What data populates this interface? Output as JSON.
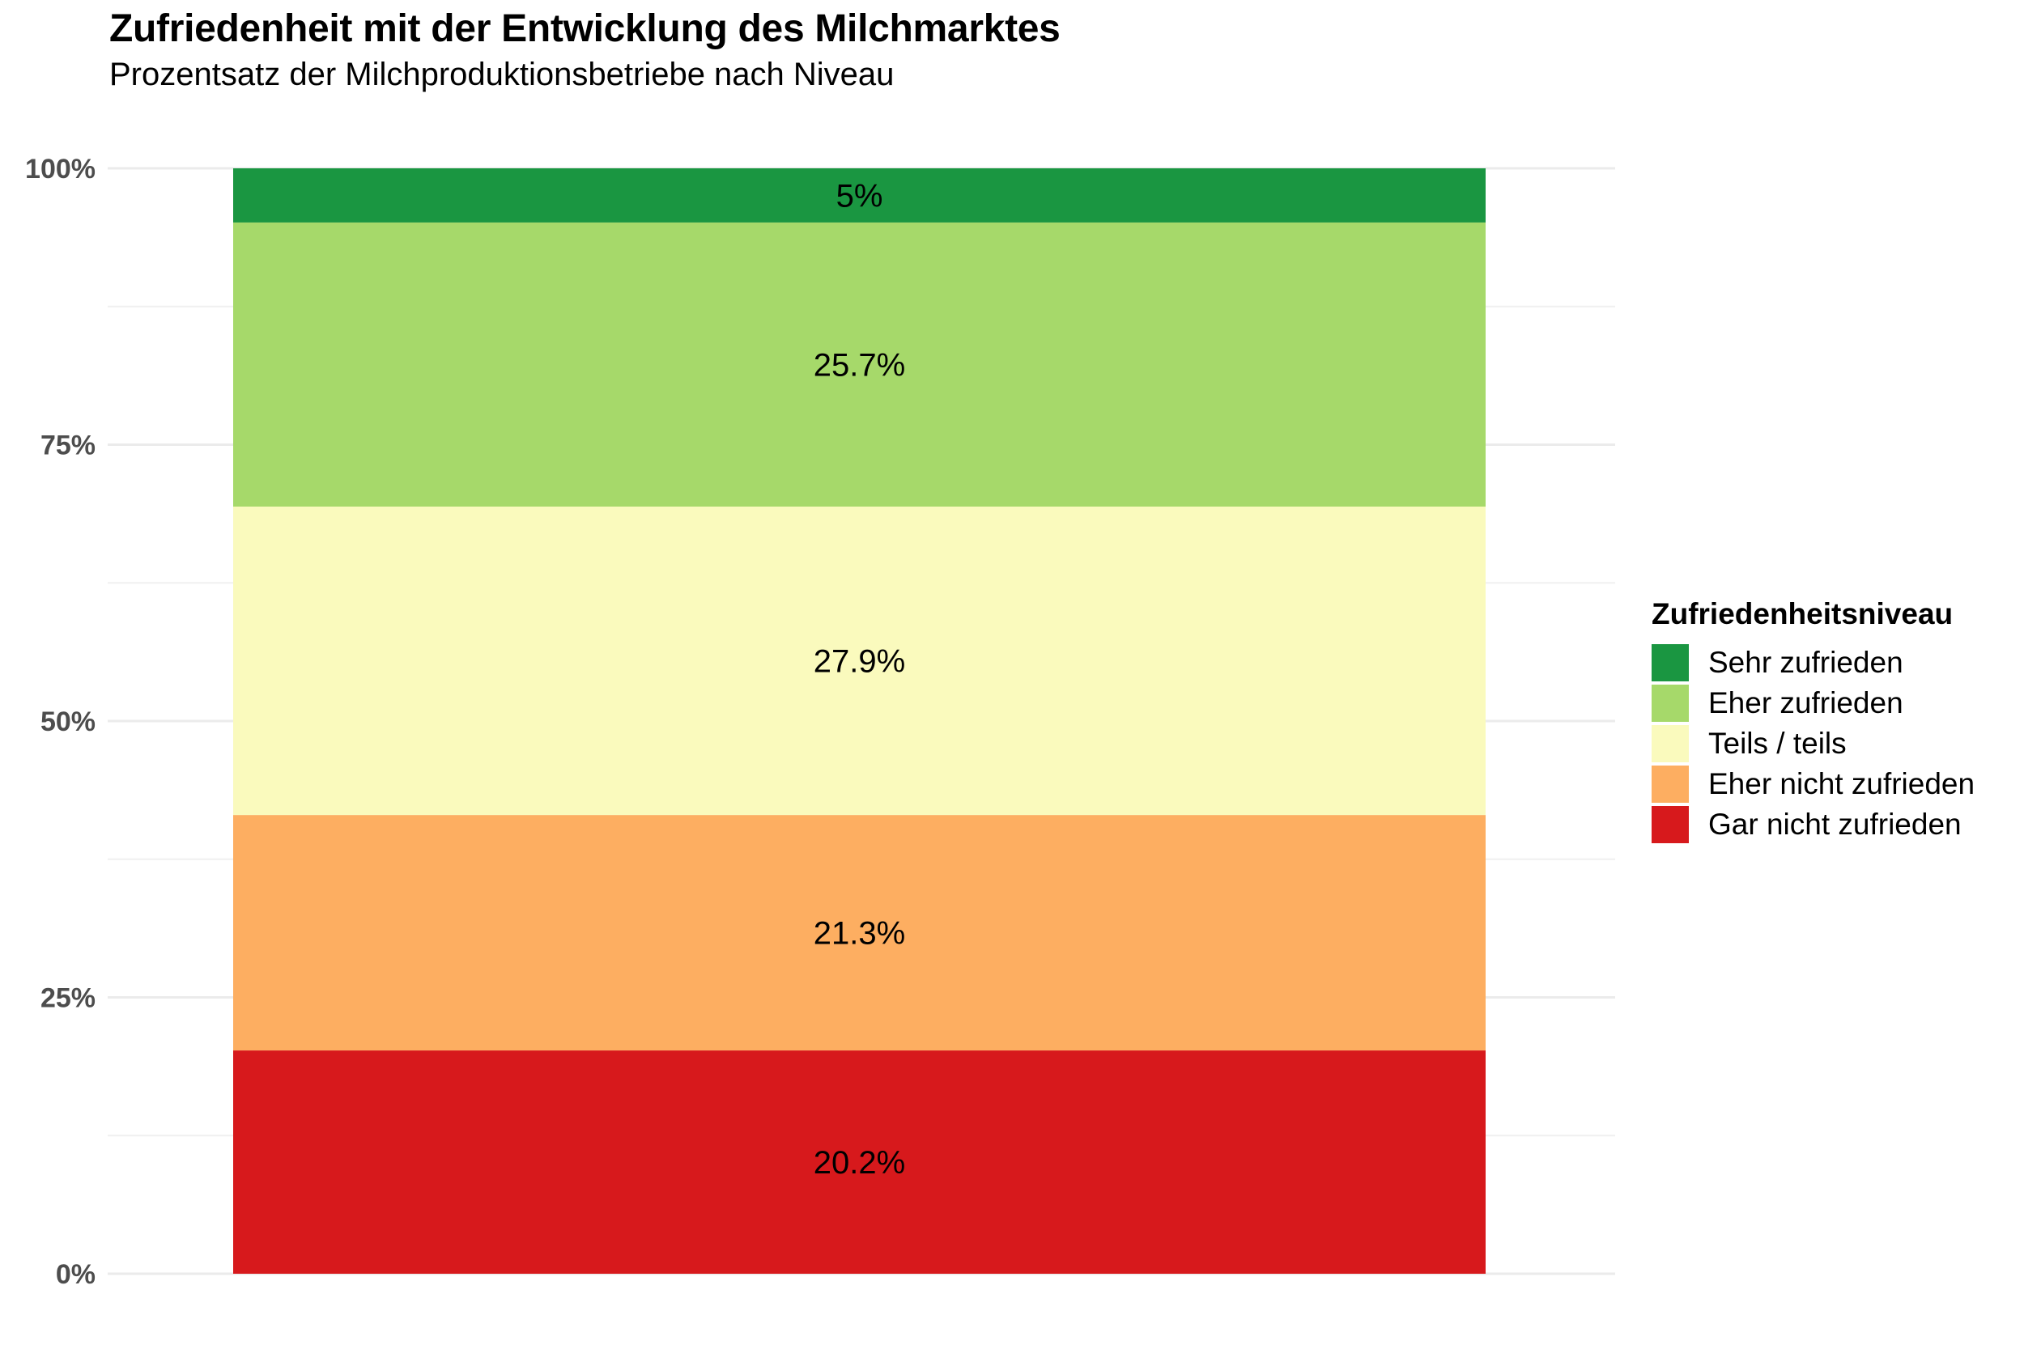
{
  "chart_data": {
    "type": "bar",
    "stacked": true,
    "title": "Zufriedenheit mit der Entwicklung des Milchmarktes",
    "subtitle": "Prozentsatz der Milchproduktionsbetriebe nach Niveau",
    "xlabel": "",
    "ylabel": "",
    "ylim": [
      0,
      100
    ],
    "yticks": [
      0,
      25,
      50,
      75,
      100
    ],
    "ytick_labels": [
      "0%",
      "25%",
      "50%",
      "75%",
      "100%"
    ],
    "grid": true,
    "categories": [
      ""
    ],
    "legend": {
      "title": "Zufriedenheitsniveau",
      "position": "right"
    },
    "series": [
      {
        "name": "Sehr zufrieden",
        "values": [
          5.0
        ],
        "label": "5%",
        "color": "#1a9641"
      },
      {
        "name": "Eher zufrieden",
        "values": [
          25.7
        ],
        "label": "25.7%",
        "color": "#a6d96a"
      },
      {
        "name": "Teils / teils",
        "values": [
          27.9
        ],
        "label": "27.9%",
        "color": "#fafabd"
      },
      {
        "name": "Eher nicht zufrieden",
        "values": [
          21.3
        ],
        "label": "21.3%",
        "color": "#fdae61"
      },
      {
        "name": "Gar nicht zufrieden",
        "values": [
          20.2
        ],
        "label": "20.2%",
        "color": "#d7191c"
      }
    ]
  }
}
